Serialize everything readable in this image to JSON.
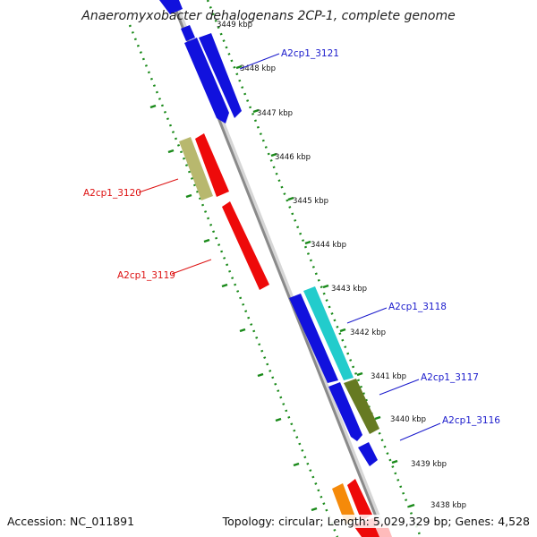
{
  "title": "Anaeromyxobacter dehalogenans 2CP-1, complete genome",
  "accession": "Accession: NC_011891",
  "summary": "Topology: circular; Length: 5,029,329 bp; Genes: 4,528",
  "colors": {
    "backbone": "#8a8a8a",
    "tick_dots": "#1a8a1a",
    "forward_label": "#1a1acc",
    "reverse_label": "#dd1111"
  },
  "ticks": [
    "3449 kbp",
    "3448 kbp",
    "3447 kbp",
    "3446 kbp",
    "3445 kbp",
    "3444 kbp",
    "3443 kbp",
    "3442 kbp",
    "3441 kbp",
    "3440 kbp",
    "3439 kbp",
    "3438 kbp"
  ],
  "genes": [
    {
      "label": "A2cp1_3121",
      "strand": "forward"
    },
    {
      "label": "A2cp1_3120",
      "strand": "reverse"
    },
    {
      "label": "A2cp1_3119",
      "strand": "reverse"
    },
    {
      "label": "A2cp1_3118",
      "strand": "forward"
    },
    {
      "label": "A2cp1_3117",
      "strand": "forward"
    },
    {
      "label": "A2cp1_3116",
      "strand": "forward"
    }
  ]
}
